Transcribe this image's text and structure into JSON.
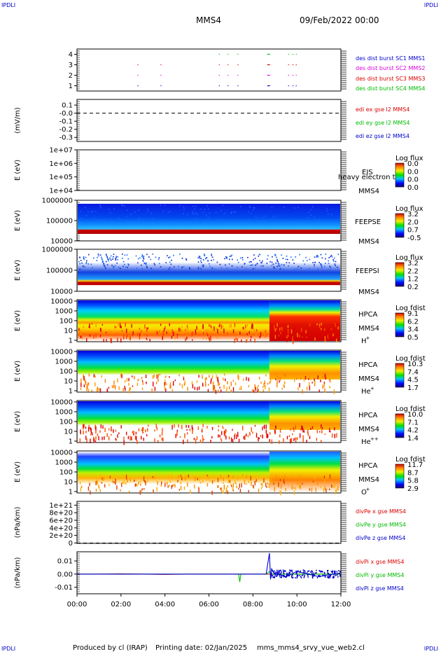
{
  "header": {
    "mission": "MMS4",
    "date": "09/Feb/2022 00:00",
    "corner_label": "IPDLI"
  },
  "footer": {
    "produced_by": "Produced by cl (IRAP)",
    "printing_date": "Printing date: 02/Jan/2025",
    "filename": "mms_mms4_srvy_vue_web2.cl"
  },
  "colors": {
    "red": "#dd0000",
    "green": "#00bb00",
    "blue": "#0000cc",
    "magenta": "#dd00dd"
  },
  "chart_data": [
    {
      "type": "scatter",
      "panel": "burst",
      "ylim": [
        0.5,
        4.5
      ],
      "yticks": [
        "1",
        "2",
        "3",
        "4"
      ],
      "legend": [
        {
          "text": "des dist burst SC1 MMS1",
          "color": "#0000cc"
        },
        {
          "text": "des dist burst SC2 MMS2",
          "color": "#dd00dd"
        },
        {
          "text": "des dist burst SC3 MMS3",
          "color": "#dd0000"
        },
        {
          "text": "des dist burst SC4 MMS4",
          "color": "#00bb00"
        }
      ],
      "series": [
        {
          "y": 1,
          "color": "#0000cc",
          "x": [
            2.75,
            3.8,
            6.45,
            6.85,
            7.3,
            8.65,
            9.6,
            9.8,
            9.95
          ]
        },
        {
          "y": 2,
          "color": "#dd00dd",
          "x": [
            2.75,
            3.8,
            6.45,
            6.85,
            7.3,
            8.65,
            9.6,
            9.8,
            9.95
          ]
        },
        {
          "y": 3,
          "color": "#dd0000",
          "x": [
            2.75,
            3.8,
            6.45,
            6.85,
            7.3,
            8.65,
            9.6,
            9.8,
            9.95
          ]
        },
        {
          "y": 4,
          "color": "#00bb00",
          "x": [
            6.45,
            6.85,
            7.3,
            8.65,
            9.6,
            9.8,
            9.95
          ]
        }
      ]
    },
    {
      "type": "line",
      "panel": "edi",
      "ylabel": "(mV/m)",
      "ylim": [
        -0.35,
        0.17
      ],
      "yticks": [
        "0.1",
        "-0.0",
        "-0.1",
        "-0.2",
        "-0.3"
      ],
      "ytick_values": [
        0.1,
        0.0,
        -0.1,
        -0.2,
        -0.3
      ],
      "reference_line": 0,
      "legend": [
        {
          "text": "edi ex gse l2 MMS4",
          "color": "#dd0000"
        },
        {
          "text": "edi ey gse l2 MMS4",
          "color": "#00bb00"
        },
        {
          "text": "edi ez gse l2 MMS4",
          "color": "#0000cc"
        }
      ]
    },
    {
      "type": "heatmap",
      "panel": "eis",
      "ylabel": "E (eV)",
      "yticks": [
        "1e+07",
        "1e+06",
        "1e+05",
        "1e+04"
      ],
      "labels": [
        "EIS",
        "heavy electron to",
        "MMS4"
      ],
      "colorbar": {
        "title": "Log flux",
        "ticks": [
          "0.0",
          "0.0",
          "0.0",
          "0.0"
        ]
      }
    },
    {
      "type": "heatmap",
      "panel": "feepse",
      "ylabel": "E (eV)",
      "yticks": [
        "1000000",
        "100000",
        "10000"
      ],
      "labels": [
        "FEEPSE",
        "MMS4"
      ],
      "colorbar": {
        "title": "Log flux",
        "ticks": [
          "3.2",
          "2.0",
          "0.7",
          "-0.5"
        ]
      }
    },
    {
      "type": "heatmap",
      "panel": "feepsi",
      "ylabel": "E (eV)",
      "yticks": [
        "1000000",
        "100000",
        "10000"
      ],
      "labels": [
        "FEEPSI",
        "MMS4"
      ],
      "colorbar": {
        "title": "Log flux",
        "ticks": [
          "3.2",
          "2.2",
          "1.2",
          "0.2"
        ]
      }
    },
    {
      "type": "heatmap",
      "panel": "hpca_h",
      "ylabel": "E (eV)",
      "yticks": [
        "10000",
        "1000",
        "100",
        "10",
        "1"
      ],
      "labels": [
        "HPCA",
        "MMS4",
        "H",
        "+"
      ],
      "colorbar": {
        "title": "Log fdist",
        "ticks": [
          "9.1",
          "6.2",
          "3.4",
          "0.5"
        ]
      }
    },
    {
      "type": "heatmap",
      "panel": "hpca_he",
      "ylabel": "E (eV)",
      "yticks": [
        "10000",
        "1000",
        "100",
        "10",
        "1"
      ],
      "labels": [
        "HPCA",
        "MMS4",
        "He",
        "+"
      ],
      "colorbar": {
        "title": "Log fdist",
        "ticks": [
          "10.3",
          "7.4",
          "4.5",
          "1.7"
        ]
      }
    },
    {
      "type": "heatmap",
      "panel": "hpca_hepp",
      "ylabel": "E (eV)",
      "yticks": [
        "10000",
        "1000",
        "100",
        "10",
        "1"
      ],
      "labels": [
        "HPCA",
        "MMS4",
        "He",
        "++"
      ],
      "colorbar": {
        "title": "Log fdist",
        "ticks": [
          "10.0",
          "7.1",
          "4.2",
          "1.4"
        ]
      }
    },
    {
      "type": "heatmap",
      "panel": "hpca_o",
      "ylabel": "E (eV)",
      "yticks": [
        "10000",
        "1000",
        "100",
        "10",
        "1"
      ],
      "labels": [
        "HPCA",
        "MMS4",
        "O",
        "+"
      ],
      "colorbar": {
        "title": "Log fdist",
        "ticks": [
          "11.7",
          "8.7",
          "5.8",
          "2.9"
        ]
      }
    },
    {
      "type": "line",
      "panel": "divpe",
      "ylabel": "(nPa/km)",
      "ylim": [
        -1e+19,
        1.1e+21
      ],
      "yticks": [
        "1e+21",
        "8e+20",
        "6e+20",
        "4e+20",
        "2e+20",
        "0"
      ],
      "ytick_values": [
        1e+21,
        8e+20,
        6e+20,
        4e+20,
        2e+20,
        0
      ],
      "reference_line": 0,
      "legend": [
        {
          "text": "divPe x gse MMS4",
          "color": "#dd0000"
        },
        {
          "text": "divPe y gse MMS4",
          "color": "#00bb00"
        },
        {
          "text": "divPe z gse MMS4",
          "color": "#0000cc"
        }
      ]
    },
    {
      "type": "line",
      "panel": "divpi",
      "ylabel": "(nPa/km)",
      "ylim": [
        -0.015,
        0.017
      ],
      "yticks": [
        "0.01",
        "0.00",
        "-0.01"
      ],
      "ytick_values": [
        0.01,
        0.0,
        -0.01
      ],
      "x": [
        0,
        1,
        2,
        3,
        4,
        5,
        6,
        7,
        7.35,
        7.4,
        7.45,
        8,
        8.6,
        8.75,
        8.8,
        8.85,
        8.95,
        9.5,
        10,
        11,
        12
      ],
      "series": [
        {
          "name": "",
          "color": "#dd0000",
          "values": [
            0,
            0,
            0.0002,
            0,
            -0.0002,
            0,
            0,
            0,
            0,
            0,
            0,
            0,
            0,
            0,
            0,
            0,
            0,
            0,
            0,
            0,
            0
          ]
        },
        {
          "name": "",
          "color": "#00bb00",
          "values": [
            0,
            0,
            0,
            0,
            0,
            0,
            0,
            0,
            0,
            -0.006,
            0,
            0,
            0,
            0.002,
            0,
            0,
            0,
            0,
            0,
            0,
            0
          ]
        },
        {
          "name": "",
          "color": "#0000cc",
          "values": [
            0,
            0,
            0,
            0,
            0,
            0,
            0,
            0,
            0,
            0,
            0,
            0,
            0,
            0.016,
            -0.004,
            0.004,
            0.001,
            -0.002,
            0.002,
            -0.002,
            0.001
          ]
        }
      ],
      "legend": [
        {
          "text": "divPi x gse MMS4",
          "color": "#dd0000"
        },
        {
          "text": "divPi y gse MMS4",
          "color": "#00bb00"
        },
        {
          "text": "divPi z gse MMS4",
          "color": "#0000cc"
        }
      ]
    }
  ],
  "xaxis": {
    "range_hours": [
      0,
      12
    ],
    "tick_labels": [
      "00:00",
      "02:00",
      "04:00",
      "06:00",
      "08:00",
      "10:00",
      "12:00"
    ]
  }
}
